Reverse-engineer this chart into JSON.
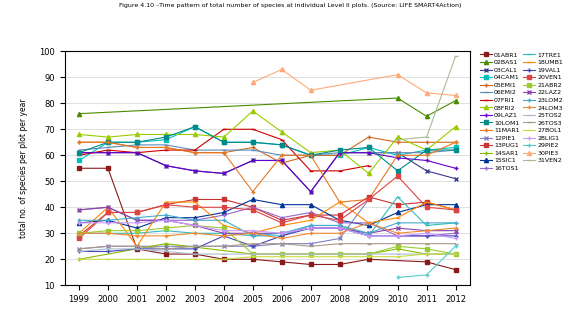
{
  "years_list": [
    1999,
    2000,
    2001,
    2002,
    2003,
    2004,
    2005,
    2006,
    2007,
    2008,
    2009,
    2010,
    2011,
    2012
  ],
  "series": {
    "01ABR1": {
      "color": "#8B1A1A",
      "marker": "s",
      "data": {
        "1999": 55,
        "2000": 55,
        "2001": 24,
        "2002": 22,
        "2003": 22,
        "2004": 20,
        "2005": 20,
        "2006": 19,
        "2007": 18,
        "2008": 18,
        "2009": 20,
        "2011": 19,
        "2012": 16
      }
    },
    "02BAS1": {
      "color": "#4B8B00",
      "marker": "^",
      "data": {
        "1999": 76,
        "2010": 82,
        "2011": 75,
        "2012": 81
      }
    },
    "03CAL1": {
      "color": "#3B3B8B",
      "marker": "x",
      "data": {
        "1999": 61,
        "2000": 61,
        "2001": 61,
        "2002": 56,
        "2003": 54,
        "2004": 53,
        "2005": 58,
        "2006": 58,
        "2007": 46,
        "2008": 61,
        "2009": 61,
        "2010": 61,
        "2011": 54,
        "2012": 51
      }
    },
    "04CAM1": {
      "color": "#00BFBF",
      "marker": "s",
      "data": {
        "1999": 58,
        "2000": 65,
        "2001": 65,
        "2002": 66,
        "2003": 71,
        "2004": 65,
        "2005": 65,
        "2006": 64,
        "2007": 60,
        "2008": 60,
        "2009": 63,
        "2010": 60,
        "2011": 62,
        "2012": 63
      }
    },
    "05EMI1": {
      "color": "#D2691E",
      "marker": "+",
      "data": {
        "1999": 65,
        "2000": 65,
        "2001": 63,
        "2002": 63,
        "2003": 61,
        "2004": 61,
        "2005": 63,
        "2006": 57,
        "2007": 60,
        "2008": 60,
        "2009": 67,
        "2010": 65,
        "2011": 65,
        "2012": 65
      }
    },
    "06EMI2": {
      "color": "#5B8DB8",
      "marker": "_",
      "data": {
        "1999": 62,
        "2000": 63,
        "2001": 64,
        "2002": 64,
        "2003": 62,
        "2004": 62,
        "2005": 62,
        "2006": 60,
        "2007": 60,
        "2008": 61,
        "2009": 61,
        "2010": 61,
        "2011": 61,
        "2012": 62
      }
    },
    "07FRI1": {
      "color": "#CC0000",
      "marker": "_",
      "data": {
        "1999": 60,
        "2000": 62,
        "2001": 61,
        "2002": 62,
        "2003": 62,
        "2004": 70,
        "2005": 70,
        "2006": 66,
        "2007": 54,
        "2008": 54,
        "2009": 56
      }
    },
    "08FRI2": {
      "color": "#99CC00",
      "marker": "^",
      "data": {
        "1999": 68,
        "2000": 67,
        "2001": 68,
        "2002": 68,
        "2003": 68,
        "2004": 67,
        "2005": 77,
        "2006": 69,
        "2007": 61,
        "2008": 62,
        "2009": 53,
        "2010": 67,
        "2011": 62,
        "2012": 71
      }
    },
    "09LAZ1": {
      "color": "#6600CC",
      "marker": "+",
      "data": {
        "1999": 61,
        "2000": 61,
        "2001": 61,
        "2002": 56,
        "2003": 54,
        "2004": 53,
        "2005": 58,
        "2006": 58,
        "2007": 46,
        "2008": 61,
        "2009": 61,
        "2010": 59,
        "2011": 58,
        "2012": 55
      }
    },
    "10LOM1": {
      "color": "#008B8B",
      "marker": "s",
      "data": {
        "1999": 61,
        "2000": 65,
        "2001": 65,
        "2002": 67,
        "2003": 71,
        "2004": 65,
        "2005": 65,
        "2006": 64,
        "2007": 60,
        "2008": 62,
        "2009": 63,
        "2010": 54,
        "2011": 62,
        "2012": 62
      }
    },
    "11MAR1": {
      "color": "#E87820",
      "marker": "+",
      "data": {
        "1999": 65,
        "2000": 65,
        "2001": 63,
        "2002": 63,
        "2003": 61,
        "2004": 61,
        "2005": 46,
        "2006": 60,
        "2007": 60,
        "2008": 42,
        "2009": 43,
        "2010": 60,
        "2011": 60,
        "2012": 65
      }
    },
    "12PIE1": {
      "color": "#8080C0",
      "marker": "x",
      "data": {
        "1999": 24,
        "2000": 25,
        "2001": 25,
        "2002": 25,
        "2003": 25,
        "2004": 25,
        "2005": 25,
        "2006": 26,
        "2007": 26,
        "2008": 28,
        "2009": 43
      }
    },
    "13PUG1": {
      "color": "#CC3333",
      "marker": "s",
      "data": {
        "1999": 29,
        "2000": 38,
        "2001": 38,
        "2002": 41,
        "2003": 43,
        "2004": 43,
        "2005": 40,
        "2006": 35,
        "2007": 37,
        "2008": 37,
        "2009": 44,
        "2010": 41,
        "2011": 42,
        "2012": 39
      }
    },
    "14SAR1": {
      "color": "#88BB00",
      "marker": "+",
      "data": {
        "1999": 20,
        "2002": 26,
        "2005": 22,
        "2006": 22,
        "2007": 22,
        "2008": 22,
        "2009": 22,
        "2010": 24,
        "2011": 22,
        "2012": 22
      }
    },
    "15SIC1": {
      "color": "#003399",
      "marker": "^",
      "data": {
        "1999": 34,
        "2000": 35,
        "2001": 32,
        "2002": 36,
        "2003": 36,
        "2004": 38,
        "2005": 43,
        "2006": 41,
        "2007": 41,
        "2008": 35,
        "2009": 33,
        "2010": 38,
        "2011": 41,
        "2012": 41
      }
    },
    "16TOS1": {
      "color": "#9966CC",
      "marker": "+",
      "data": {
        "1999": 39,
        "2000": 40,
        "2001": 35,
        "2002": 35,
        "2003": 35,
        "2004": 37,
        "2005": 40,
        "2006": 36,
        "2007": 38,
        "2008": 34,
        "2009": 34,
        "2010": 29,
        "2011": 29,
        "2012": 30
      }
    },
    "17TRE1": {
      "color": "#33BBBB",
      "marker": "_",
      "data": {
        "1999": 30,
        "2000": 30,
        "2001": 30,
        "2002": 31,
        "2003": 30,
        "2004": 30,
        "2005": 29,
        "2006": 29,
        "2007": 33,
        "2008": 33,
        "2009": 29,
        "2010": 44,
        "2011": 33,
        "2012": 34
      }
    },
    "18UMB1": {
      "color": "#FF8800",
      "marker": "_",
      "data": {
        "1999": 30,
        "2000": 40,
        "2001": 25,
        "2002": 42,
        "2003": 42,
        "2004": 33,
        "2005": 30,
        "2006": 33,
        "2007": 35,
        "2008": 42,
        "2009": 34,
        "2010": 36,
        "2011": 42,
        "2012": 39
      }
    },
    "19VAL1": {
      "color": "#4444BB",
      "marker": "+",
      "data": {
        "1999": 23,
        "2000": 23,
        "2001": 24,
        "2002": 24,
        "2003": 24,
        "2004": 29,
        "2005": 25,
        "2006": 29,
        "2007": 32,
        "2008": 32,
        "2009": 29,
        "2010": 29,
        "2011": 29,
        "2012": 29
      }
    },
    "20VEN1": {
      "color": "#DD4444",
      "marker": "s",
      "data": {
        "1999": 28,
        "2000": 38,
        "2001": 38,
        "2002": 41,
        "2003": 40,
        "2004": 40,
        "2005": 39,
        "2006": 34,
        "2007": 37,
        "2008": 35,
        "2009": 43,
        "2010": 52,
        "2011": 40,
        "2012": 39
      }
    },
    "21ABR2": {
      "color": "#99CC33",
      "marker": "s",
      "data": {
        "1999": 30,
        "2000": 31,
        "2001": 31,
        "2002": 32,
        "2003": 33,
        "2004": 32,
        "2005": 22,
        "2006": 22,
        "2007": 22,
        "2008": 22,
        "2009": 22,
        "2010": 25,
        "2011": 24,
        "2012": 22
      }
    },
    "22LAZ2": {
      "color": "#8844AA",
      "marker": "x",
      "data": {
        "1999": 39,
        "2000": 40,
        "2001": 35,
        "2002": 35,
        "2003": 33,
        "2004": 30,
        "2005": 30,
        "2006": 30,
        "2007": 32,
        "2008": 32,
        "2009": 30,
        "2010": 32,
        "2011": 31,
        "2012": 31
      }
    },
    "23LOM2": {
      "color": "#44AACC",
      "marker": "+",
      "data": {
        "1999": 35,
        "2000": 35,
        "2001": 36,
        "2002": 37,
        "2003": 35,
        "2004": 35,
        "2005": 29,
        "2006": 30,
        "2007": 33,
        "2008": 33,
        "2009": 30,
        "2010": 34,
        "2011": 34,
        "2012": 34
      }
    },
    "24LOM3": {
      "color": "#EE8833",
      "marker": "+",
      "data": {
        "1999": 30,
        "2000": 30,
        "2001": 29,
        "2002": 29,
        "2003": 30,
        "2004": 29,
        "2005": 30,
        "2006": 28,
        "2007": 30,
        "2008": 30,
        "2009": 34,
        "2010": 30,
        "2011": 31,
        "2012": 32
      }
    },
    "25TOS2": {
      "color": "#AABBCC",
      "marker": "_",
      "data": {
        "1999": 23,
        "2000": 24,
        "2001": 24,
        "2002": 23,
        "2003": 22,
        "2004": 22,
        "2005": 22,
        "2006": 22,
        "2007": 22,
        "2008": 22,
        "2009": 22,
        "2010": 22,
        "2011": 22,
        "2012": 22
      }
    },
    "26TOS3": {
      "color": "#AA9988",
      "marker": "_",
      "data": {
        "1999": 24,
        "2000": 25,
        "2001": 25,
        "2002": 24,
        "2003": 25,
        "2004": 25,
        "2005": 26,
        "2006": 26,
        "2007": 25,
        "2008": 26,
        "2009": 26,
        "2010": 26,
        "2011": 26,
        "2012": 26
      }
    },
    "27BOL1": {
      "color": "#CCDD44",
      "marker": "_",
      "data": {
        "1999": 20,
        "2000": 20,
        "2001": 20,
        "2002": 20,
        "2003": 20,
        "2004": 20,
        "2005": 21,
        "2006": 21,
        "2007": 21,
        "2008": 21,
        "2009": 21,
        "2010": 21,
        "2011": 22,
        "2012": 22
      }
    },
    "28LIG1": {
      "color": "#CC99FF",
      "marker": "+",
      "data": {
        "1999": 34,
        "2000": 34,
        "2001": 34,
        "2002": 35,
        "2003": 33,
        "2004": 31,
        "2005": 31,
        "2006": 30,
        "2007": 32,
        "2008": 32,
        "2009": 29,
        "2010": 29,
        "2011": 30,
        "2012": 28
      }
    },
    "29PIE2": {
      "color": "#55CCCC",
      "marker": "+",
      "data": {
        "2010": 13,
        "2011": 14,
        "2012": 25
      }
    },
    "30PIE3": {
      "color": "#FFAA77",
      "marker": "^",
      "data": {
        "2005": 88,
        "2006": 93,
        "2007": 85,
        "2010": 91,
        "2011": 84,
        "2012": 83
      }
    },
    "31VEN2": {
      "color": "#AABB99",
      "marker": "_",
      "data": {
        "2010": 66,
        "2011": 67,
        "2012": 98
      }
    }
  },
  "title": "Figure 4.10 –Time pattern of total number of species at individual Level II plots. (Source: LIFE SMART4Action)",
  "ylabel": "total no. of species per plot per year",
  "ylim": [
    10,
    100
  ],
  "yticks": [
    10,
    20,
    30,
    40,
    50,
    60,
    70,
    80,
    90,
    100
  ]
}
